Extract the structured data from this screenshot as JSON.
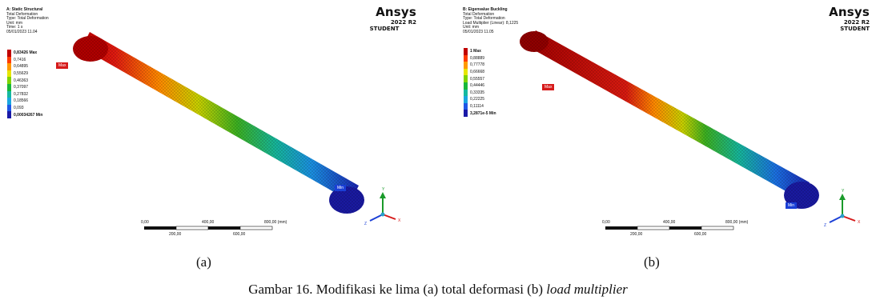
{
  "panel_a": {
    "info": {
      "title": "A: Static Structural",
      "lines": [
        "Total Deformation",
        "Type: Total Deformation",
        "Unit: mm",
        "Time: 1 s",
        "05/01/2023 11.04"
      ]
    },
    "legend": [
      "0,83426 Max",
      "0,7416",
      "0,64895",
      "0,55629",
      "0,46363",
      "0,37097",
      "0,27832",
      "0,18566",
      "0,093",
      "0,00034267 Min"
    ],
    "brand": {
      "name": "Ansys",
      "version": "2022 R2",
      "edition": "STUDENT"
    },
    "max_tag": "Max",
    "min_tag": "Min",
    "scale": {
      "top": [
        "0,00",
        "400,00",
        "800,00 (mm)"
      ],
      "bottom": [
        "200,00",
        "600,00"
      ]
    },
    "sub_caption": "(a)"
  },
  "panel_b": {
    "info": {
      "title": "B: Eigenvalue Buckling",
      "lines": [
        "Total Deformation",
        "Type: Total Deformation",
        "Load Multiplier (Linear): 8,1225",
        "Unit: mm",
        "05/01/2023 11.05"
      ]
    },
    "legend": [
      "1 Max",
      "0,88889",
      "0,77778",
      "0,66668",
      "0,55557",
      "0,44446",
      "0,33335",
      "0,22225",
      "0,11114",
      "3,2871e-5 Min"
    ],
    "brand": {
      "name": "Ansys",
      "version": "2022 R2",
      "edition": "STUDENT"
    },
    "max_tag": "Max",
    "min_tag": "Min",
    "scale": {
      "top": [
        "0,00",
        "400,00",
        "800,00 (mm)"
      ],
      "bottom": [
        "200,00",
        "600,00"
      ]
    },
    "sub_caption": "(b)"
  },
  "caption": {
    "prefix": "Gambar 16. Modifikasi ke lima (a) total deformasi (b) ",
    "italic": "load multiplier"
  },
  "colors": {
    "legend_scale": [
      "#c00000",
      "#ff3b00",
      "#ff9900",
      "#e6e600",
      "#7fd400",
      "#18b83a",
      "#15b9a0",
      "#1aa6e0",
      "#1f57e6",
      "#1a1aa8"
    ],
    "max_tag": "#d61a1a",
    "min_tag": "#1a3fd6"
  }
}
